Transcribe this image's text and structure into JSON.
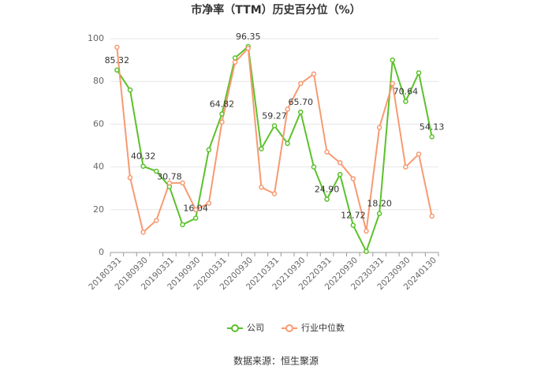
{
  "chart_data": {
    "type": "line",
    "title": "市净率（TTM）历史百分位（%）",
    "source": "数据来源：恒生聚源",
    "categories": [
      "20180331",
      null,
      "20180930",
      null,
      "20190331",
      null,
      "20190930",
      null,
      "20200331",
      null,
      "20200930",
      null,
      "20210331",
      null,
      "20210930",
      null,
      "20220331",
      null,
      "20220930",
      null,
      "20230331",
      null,
      "20230930",
      null,
      "20240130"
    ],
    "series": [
      {
        "name": "公司",
        "color": "#5cc12b",
        "values": [
          85.32,
          76,
          40.32,
          38,
          30.78,
          13,
          16.04,
          48,
          64.82,
          91,
          96.35,
          48.5,
          59.27,
          51,
          65.7,
          40,
          24.9,
          36.5,
          12.72,
          0.5,
          18.2,
          90,
          70.64,
          84,
          54.13
        ],
        "value_labels": [
          "85.32",
          null,
          "40.32",
          null,
          "30.78",
          null,
          "16.04",
          null,
          "64.82",
          null,
          "96.35",
          null,
          "59.27",
          null,
          "65.70",
          null,
          "24.90",
          null,
          "12.72",
          null,
          "18.20",
          null,
          "70.64",
          null,
          "54.13"
        ]
      },
      {
        "name": "行业中位数",
        "color": "#f79a72",
        "values": [
          96,
          35,
          9.5,
          15,
          32.5,
          32.5,
          20,
          23,
          61,
          89,
          95.5,
          30.5,
          27.5,
          67,
          79,
          83.5,
          47,
          42,
          34.5,
          10,
          58.5,
          79,
          40,
          46,
          17
        ]
      }
    ],
    "ylim": [
      0,
      100
    ],
    "yticks": [
      0,
      20,
      40,
      60,
      80,
      100
    ],
    "grid": true
  }
}
